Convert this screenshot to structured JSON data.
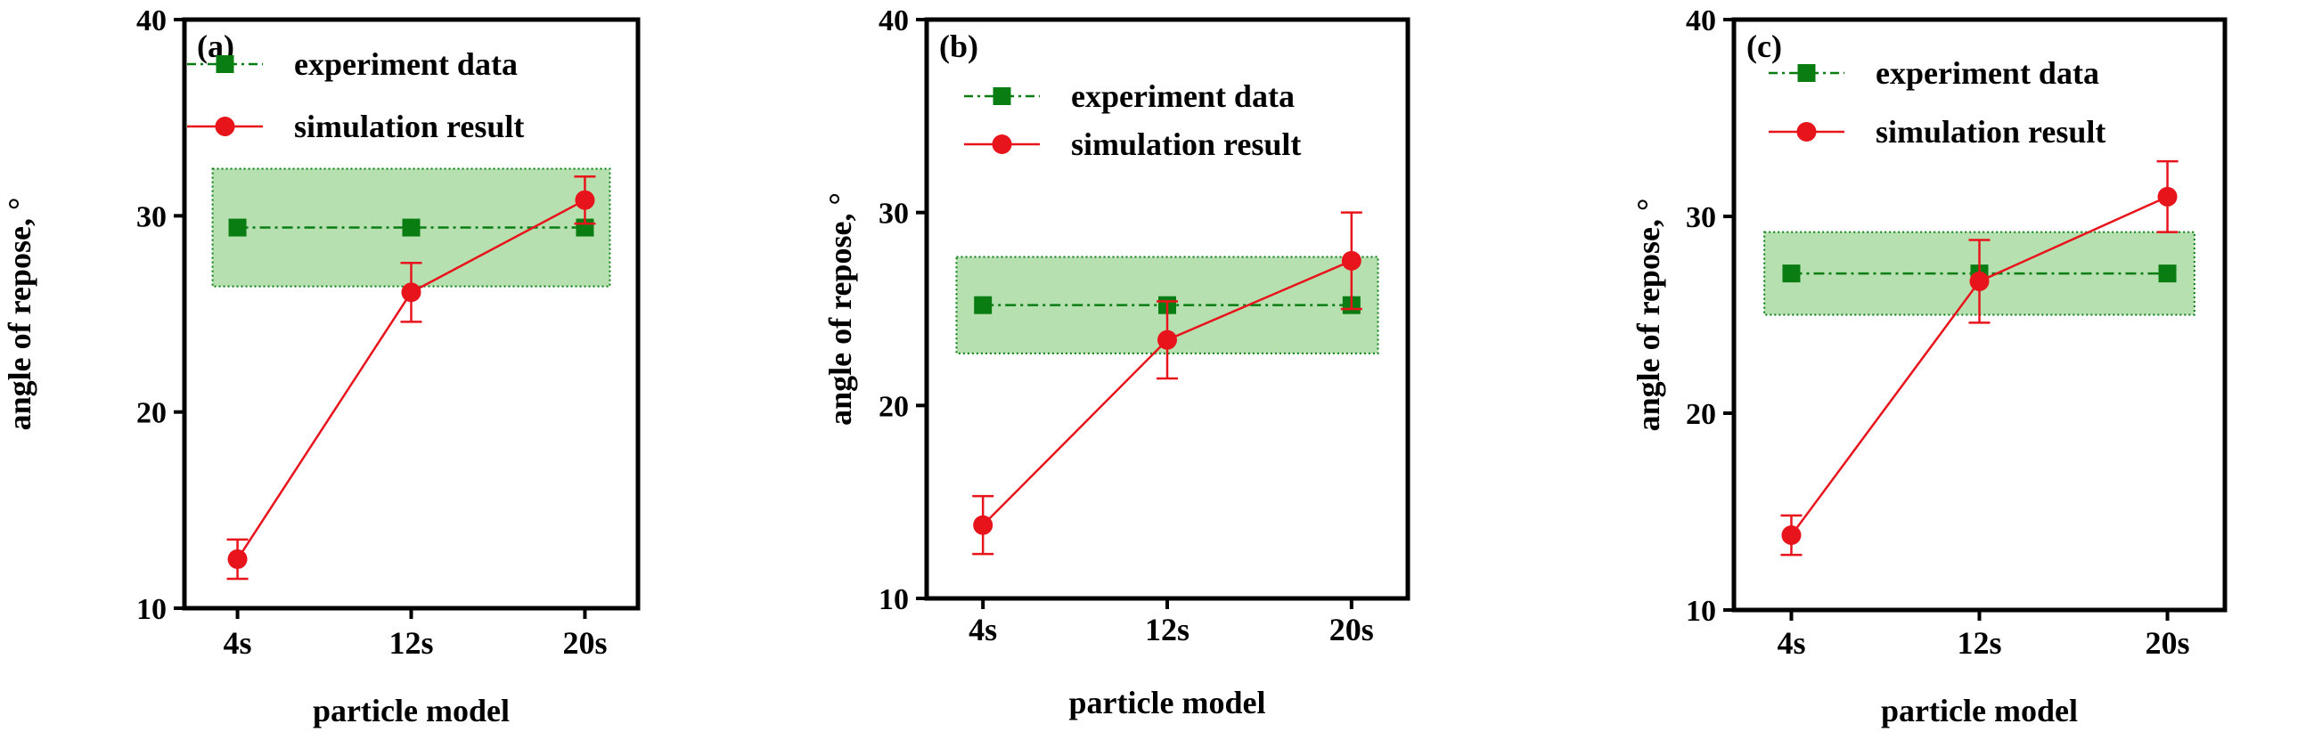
{
  "colors": {
    "experiment": "#0a7d12",
    "simulation": "#e8141c",
    "band_fill": "#b7e0b0",
    "axis": "#000000"
  },
  "chart_data": [
    {
      "type": "line",
      "panel_label": "(a)",
      "categories": [
        "4s",
        "12s",
        "20s"
      ],
      "xlabel": "particle model",
      "ylabel": "angle of repose, °",
      "ylim": [
        10,
        40
      ],
      "yticks": [
        "10",
        "20",
        "30",
        "40"
      ],
      "legend_position": "top",
      "series": [
        {
          "name": "experiment data",
          "values": [
            29.4,
            29.4,
            29.4
          ],
          "band": [
            26.4,
            32.4
          ]
        },
        {
          "name": "simulation result",
          "values": [
            12.5,
            26.1,
            30.8
          ],
          "error_low": [
            11.5,
            24.6,
            29.6
          ],
          "error_high": [
            13.5,
            27.6,
            32.0
          ]
        }
      ]
    },
    {
      "type": "line",
      "panel_label": "(b)",
      "categories": [
        "4s",
        "12s",
        "20s"
      ],
      "xlabel": "particle model",
      "ylabel": "angle of repose, °",
      "ylim": [
        10,
        40
      ],
      "yticks": [
        "10",
        "20",
        "30",
        "40"
      ],
      "legend_position": "top",
      "series": [
        {
          "name": "experiment data",
          "values": [
            25.2,
            25.2,
            25.2
          ],
          "band": [
            22.7,
            27.7
          ]
        },
        {
          "name": "simulation result",
          "values": [
            13.8,
            23.4,
            27.5
          ],
          "error_low": [
            12.3,
            21.4,
            25.0
          ],
          "error_high": [
            15.3,
            25.4,
            30.0
          ]
        }
      ]
    },
    {
      "type": "line",
      "panel_label": "(c)",
      "categories": [
        "4s",
        "12s",
        "20s"
      ],
      "xlabel": "particle model",
      "ylabel": "angle of repose, °",
      "ylim": [
        10,
        40
      ],
      "yticks": [
        "10",
        "20",
        "30",
        "40"
      ],
      "legend_position": "top",
      "series": [
        {
          "name": "experiment data",
          "values": [
            27.1,
            27.1,
            27.1
          ],
          "band": [
            25.0,
            29.2
          ]
        },
        {
          "name": "simulation result",
          "values": [
            13.8,
            26.7,
            31.0
          ],
          "error_low": [
            12.8,
            24.6,
            29.2
          ],
          "error_high": [
            14.8,
            28.8,
            32.8
          ]
        }
      ]
    }
  ]
}
